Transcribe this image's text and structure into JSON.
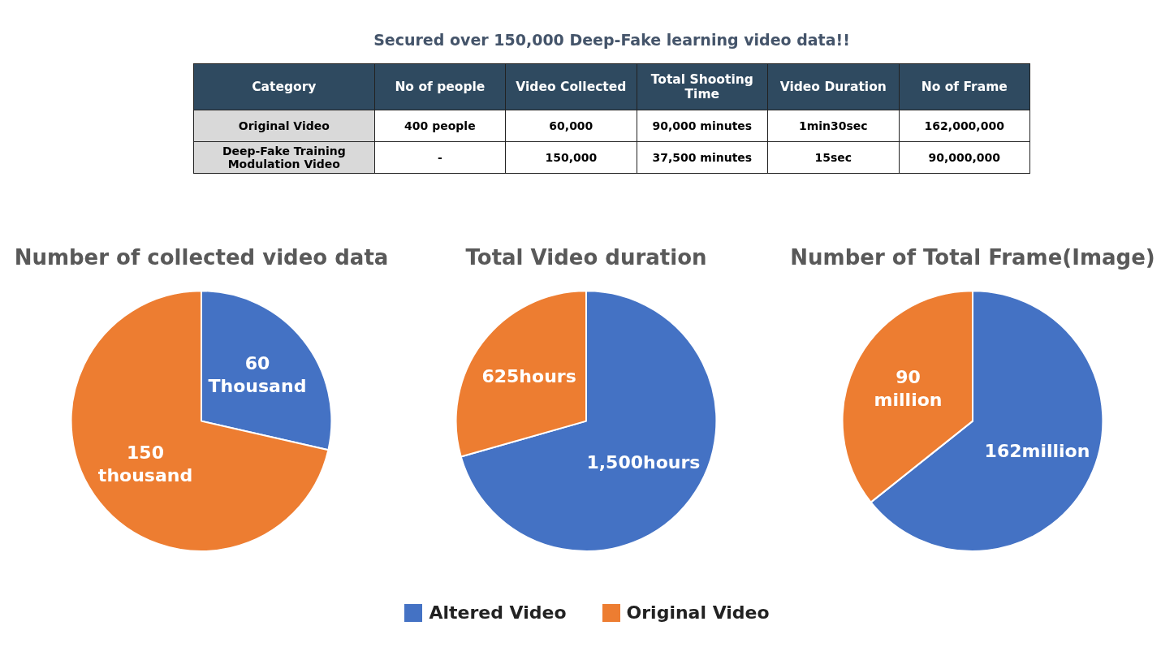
{
  "chart_data": [
    {
      "type": "other",
      "title": "Secured over 150,000 Deep-Fake learning video data!!",
      "categories": [
        "Category",
        "No of people",
        "Video Collected",
        "Total Shooting Time",
        "Video Duration",
        "No of Frame"
      ],
      "cell_labels": [
        [
          "Original Video",
          "400 people",
          "60,000",
          "90,000 minutes",
          "1min30sec",
          "162,000,000"
        ],
        [
          "Deep-Fake Training Modulation Video",
          "-",
          "150,000",
          "37,500 minutes",
          "15sec",
          "90,000,000"
        ]
      ]
    },
    {
      "type": "pie",
      "title": "Number of collected video data",
      "categories": [
        "Altered Video",
        "Original Video"
      ],
      "values": [
        60,
        150
      ],
      "colors": [
        "#4472c4",
        "#ed7d31"
      ],
      "value_labels": [
        "60 Thousand",
        "150 thousand"
      ],
      "legend": "bottom"
    },
    {
      "type": "pie",
      "title": "Total Video duration",
      "categories": [
        null,
        null
      ],
      "values": [
        1500,
        625
      ],
      "colors": [
        "#4472c4",
        "#ed7d31"
      ],
      "value_labels": [
        "1,500hours",
        "625hours"
      ]
    },
    {
      "type": "pie",
      "title": "Number of Total Frame(Image)",
      "categories": [
        null,
        null
      ],
      "values": [
        162,
        90
      ],
      "colors": [
        "#4472c4",
        "#ed7d31"
      ],
      "value_labels": [
        "162million",
        "90 million"
      ]
    }
  ]
}
